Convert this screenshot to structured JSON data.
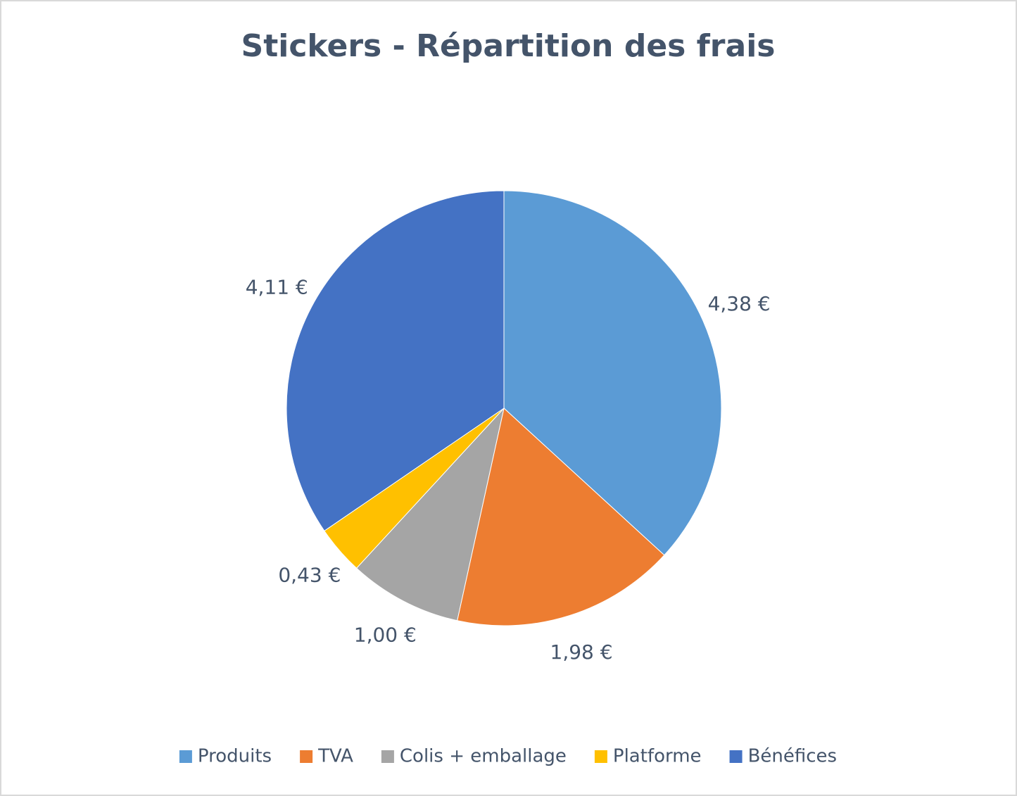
{
  "chart_data": {
    "type": "pie",
    "title": "Stickers - Répartition des frais",
    "categories": [
      "Produits",
      "TVA",
      "Colis + emballage",
      "Platforme",
      "Bénéfices"
    ],
    "values": [
      4.38,
      1.98,
      1.0,
      0.43,
      4.11
    ],
    "value_labels": [
      "4,38 €",
      "1,98 €",
      "1,00 €",
      "0,43 €",
      "4,11 €"
    ],
    "colors": [
      "#5b9bd5",
      "#ed7d31",
      "#a5a5a5",
      "#ffc000",
      "#4472c4"
    ],
    "legend": "bottom"
  }
}
